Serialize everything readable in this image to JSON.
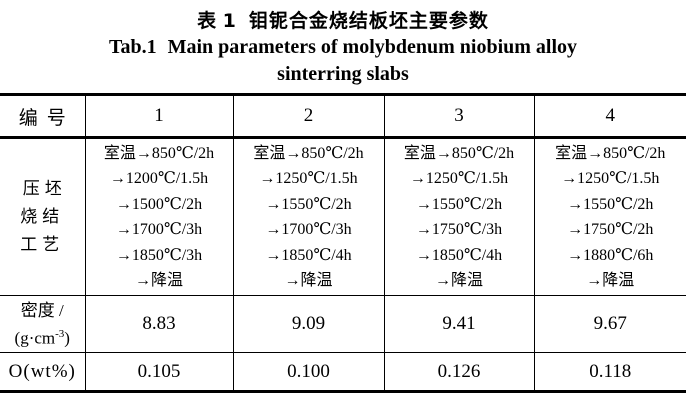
{
  "titles": {
    "chinese_prefix": "表 1",
    "chinese_main": "钼铌合金烧结板坯主要参数",
    "english_prefix": "Tab.1",
    "english_main": "Main parameters of molybdenum niobium alloy",
    "english_line2": "sinterring slabs"
  },
  "table": {
    "header": {
      "label": "编号",
      "values": [
        "1",
        "2",
        "3",
        "4"
      ]
    },
    "process": {
      "label_lines": [
        "压坯",
        "烧结",
        "工艺"
      ],
      "columns": [
        [
          "室温→850℃/2h",
          "→1200℃/1.5h",
          "→1500℃/2h",
          "→1700℃/3h",
          "→1850℃/3h",
          "→降温"
        ],
        [
          "室温→850℃/2h",
          "→1250℃/1.5h",
          "→1550℃/2h",
          "→1700℃/3h",
          "→1850℃/4h",
          "→降温"
        ],
        [
          "室温→850℃/2h",
          "→1250℃/1.5h",
          "→1550℃/2h",
          "→1750℃/3h",
          "→1850℃/4h",
          "→降温"
        ],
        [
          "室温→850℃/2h",
          "→1250℃/1.5h",
          "→1550℃/2h",
          "→1750℃/2h",
          "→1880℃/6h",
          "→降温"
        ]
      ]
    },
    "density": {
      "label_line1": "密度 /",
      "unit_prefix": "(g·cm",
      "unit_sup": "-3",
      "unit_suffix": ")",
      "values": [
        "8.83",
        "9.09",
        "9.41",
        "9.67"
      ]
    },
    "oxygen": {
      "label": "O(wt%)",
      "values": [
        "0.105",
        "0.100",
        "0.126",
        "0.118"
      ]
    }
  },
  "colors": {
    "text": "#000000",
    "background": "#ffffff",
    "border": "#000000"
  }
}
